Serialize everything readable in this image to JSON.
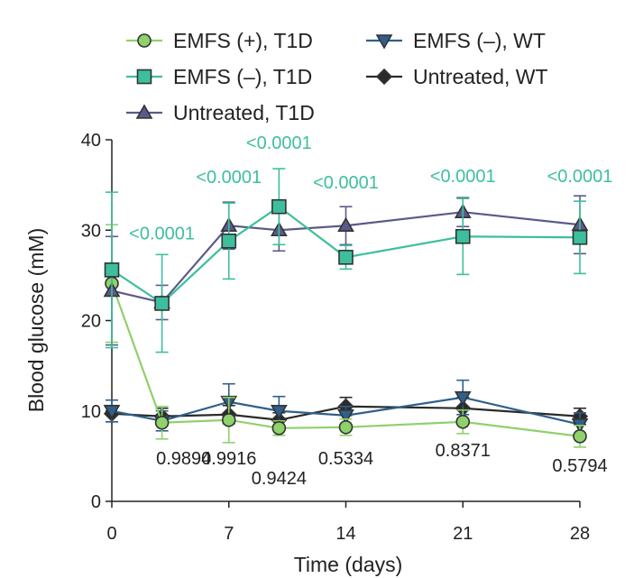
{
  "chart_data": {
    "type": "line",
    "title": "",
    "xlabel": "Time (days)",
    "ylabel": "Blood glucose (mM)",
    "xlim": [
      0,
      28
    ],
    "ylim": [
      0,
      40
    ],
    "xticks": [
      "0",
      "7",
      "14",
      "21",
      "28"
    ],
    "yticks": [
      "0",
      "10",
      "20",
      "30",
      "40"
    ],
    "legend_position": "top",
    "series": [
      {
        "name": "EMFS (+), T1D",
        "color": "#8fd16a",
        "marker": "circle",
        "x": [
          0,
          3,
          7,
          10,
          14,
          21,
          28
        ],
        "y": [
          24.1,
          8.7,
          9.0,
          8.1,
          8.2,
          8.8,
          7.2
        ],
        "err": [
          6.5,
          1.8,
          2.5,
          0.8,
          0.9,
          1.3,
          1.2
        ]
      },
      {
        "name": "EMFS (–), T1D",
        "color": "#3dbf9e",
        "marker": "square",
        "x": [
          0,
          3,
          7,
          10,
          14,
          21,
          28
        ],
        "y": [
          25.6,
          21.9,
          28.8,
          32.6,
          27.0,
          29.3,
          29.2
        ],
        "err": [
          8.6,
          5.4,
          4.2,
          4.2,
          1.3,
          4.2,
          4.0
        ]
      },
      {
        "name": "Untreated, T1D",
        "color": "#5a5a8a",
        "marker": "triangle-up",
        "x": [
          0,
          3,
          7,
          10,
          14,
          21,
          28
        ],
        "y": [
          23.3,
          22.0,
          30.5,
          30.0,
          30.5,
          32.0,
          30.6
        ],
        "err": [
          6.0,
          1.9,
          2.6,
          2.3,
          2.1,
          1.6,
          3.2
        ]
      },
      {
        "name": "EMFS (–), WT",
        "color": "#2f5f8a",
        "marker": "triangle-down",
        "x": [
          0,
          3,
          7,
          10,
          14,
          21,
          28
        ],
        "y": [
          10.0,
          8.9,
          11.0,
          10.0,
          9.5,
          11.5,
          8.5
        ],
        "err": [
          1.2,
          1.1,
          2.0,
          1.6,
          1.0,
          1.9,
          1.3
        ]
      },
      {
        "name": "Untreated, WT",
        "color": "#2a2a2a",
        "marker": "diamond",
        "x": [
          0,
          3,
          7,
          10,
          14,
          21,
          28
        ],
        "y": [
          9.7,
          9.4,
          9.6,
          9.0,
          10.5,
          10.3,
          9.4
        ],
        "err": [
          0.9,
          0.9,
          1.0,
          0.8,
          1.0,
          1.2,
          0.9
        ]
      }
    ],
    "annotations_top": [
      {
        "text": "<0.0001",
        "x": 3,
        "y": 29.0
      },
      {
        "text": "<0.0001",
        "x": 7,
        "y": 35.2
      },
      {
        "text": "<0.0001",
        "x": 10,
        "y": 39.0
      },
      {
        "text": "<0.0001",
        "x": 14,
        "y": 34.6
      },
      {
        "text": "<0.0001",
        "x": 21,
        "y": 35.3
      },
      {
        "text": "<0.0001",
        "x": 28,
        "y": 35.3
      }
    ],
    "annotations_bottom": [
      {
        "text": "0.9894",
        "x": 4.3,
        "y": 4.1
      },
      {
        "text": "0.9916",
        "x": 7.0,
        "y": 4.1
      },
      {
        "text": "0.9424",
        "x": 10.0,
        "y": 1.9
      },
      {
        "text": "0.5334",
        "x": 14.0,
        "y": 4.1
      },
      {
        "text": "0.8371",
        "x": 21.0,
        "y": 5.0
      },
      {
        "text": "0.5794",
        "x": 28.0,
        "y": 3.3
      }
    ],
    "annotation_color": "#3dbf9e"
  }
}
